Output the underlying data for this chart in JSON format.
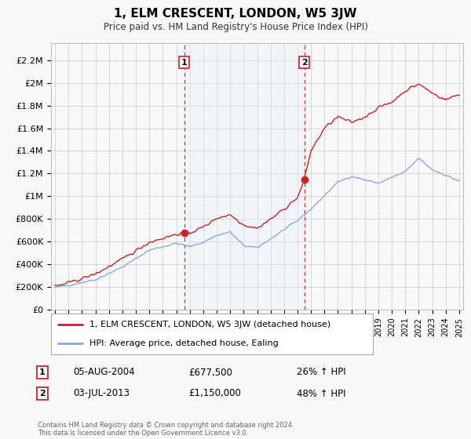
{
  "title": "1, ELM CRESCENT, LONDON, W5 3JW",
  "subtitle": "Price paid vs. HM Land Registry's House Price Index (HPI)",
  "legend_line1": "1, ELM CRESCENT, LONDON, W5 3JW (detached house)",
  "legend_line2": "HPI: Average price, detached house, Ealing",
  "annotation1_label": "1",
  "annotation1_date": "05-AUG-2004",
  "annotation1_price": "£677,500",
  "annotation1_hpi": "26% ↑ HPI",
  "annotation2_label": "2",
  "annotation2_date": "03-JUL-2013",
  "annotation2_price": "£1,150,000",
  "annotation2_hpi": "48% ↑ HPI",
  "footer": "Contains HM Land Registry data © Crown copyright and database right 2024.\nThis data is licensed under the Open Government Licence v3.0.",
  "red_color": "#cc2222",
  "blue_color": "#88aadd",
  "shade_color": "#ddeeff",
  "dashed_color": "#cc2222",
  "background_color": "#f8f8f8",
  "chart_bg": "#f8f8f8",
  "grid_color": "#cccccc",
  "ylim": [
    0,
    2350000
  ],
  "yticks": [
    0,
    200000,
    400000,
    600000,
    800000,
    1000000,
    1200000,
    1400000,
    1600000,
    1800000,
    2000000,
    2200000
  ],
  "ytick_labels": [
    "£0",
    "£200K",
    "£400K",
    "£600K",
    "£800K",
    "£1M",
    "£1.2M",
    "£1.4M",
    "£1.6M",
    "£1.8M",
    "£2M",
    "£2.2M"
  ],
  "sale1_x": 2004.58,
  "sale1_y": 677500,
  "sale2_x": 2013.5,
  "sale2_y": 1150000,
  "xmin": 1994.7,
  "xmax": 2025.3
}
